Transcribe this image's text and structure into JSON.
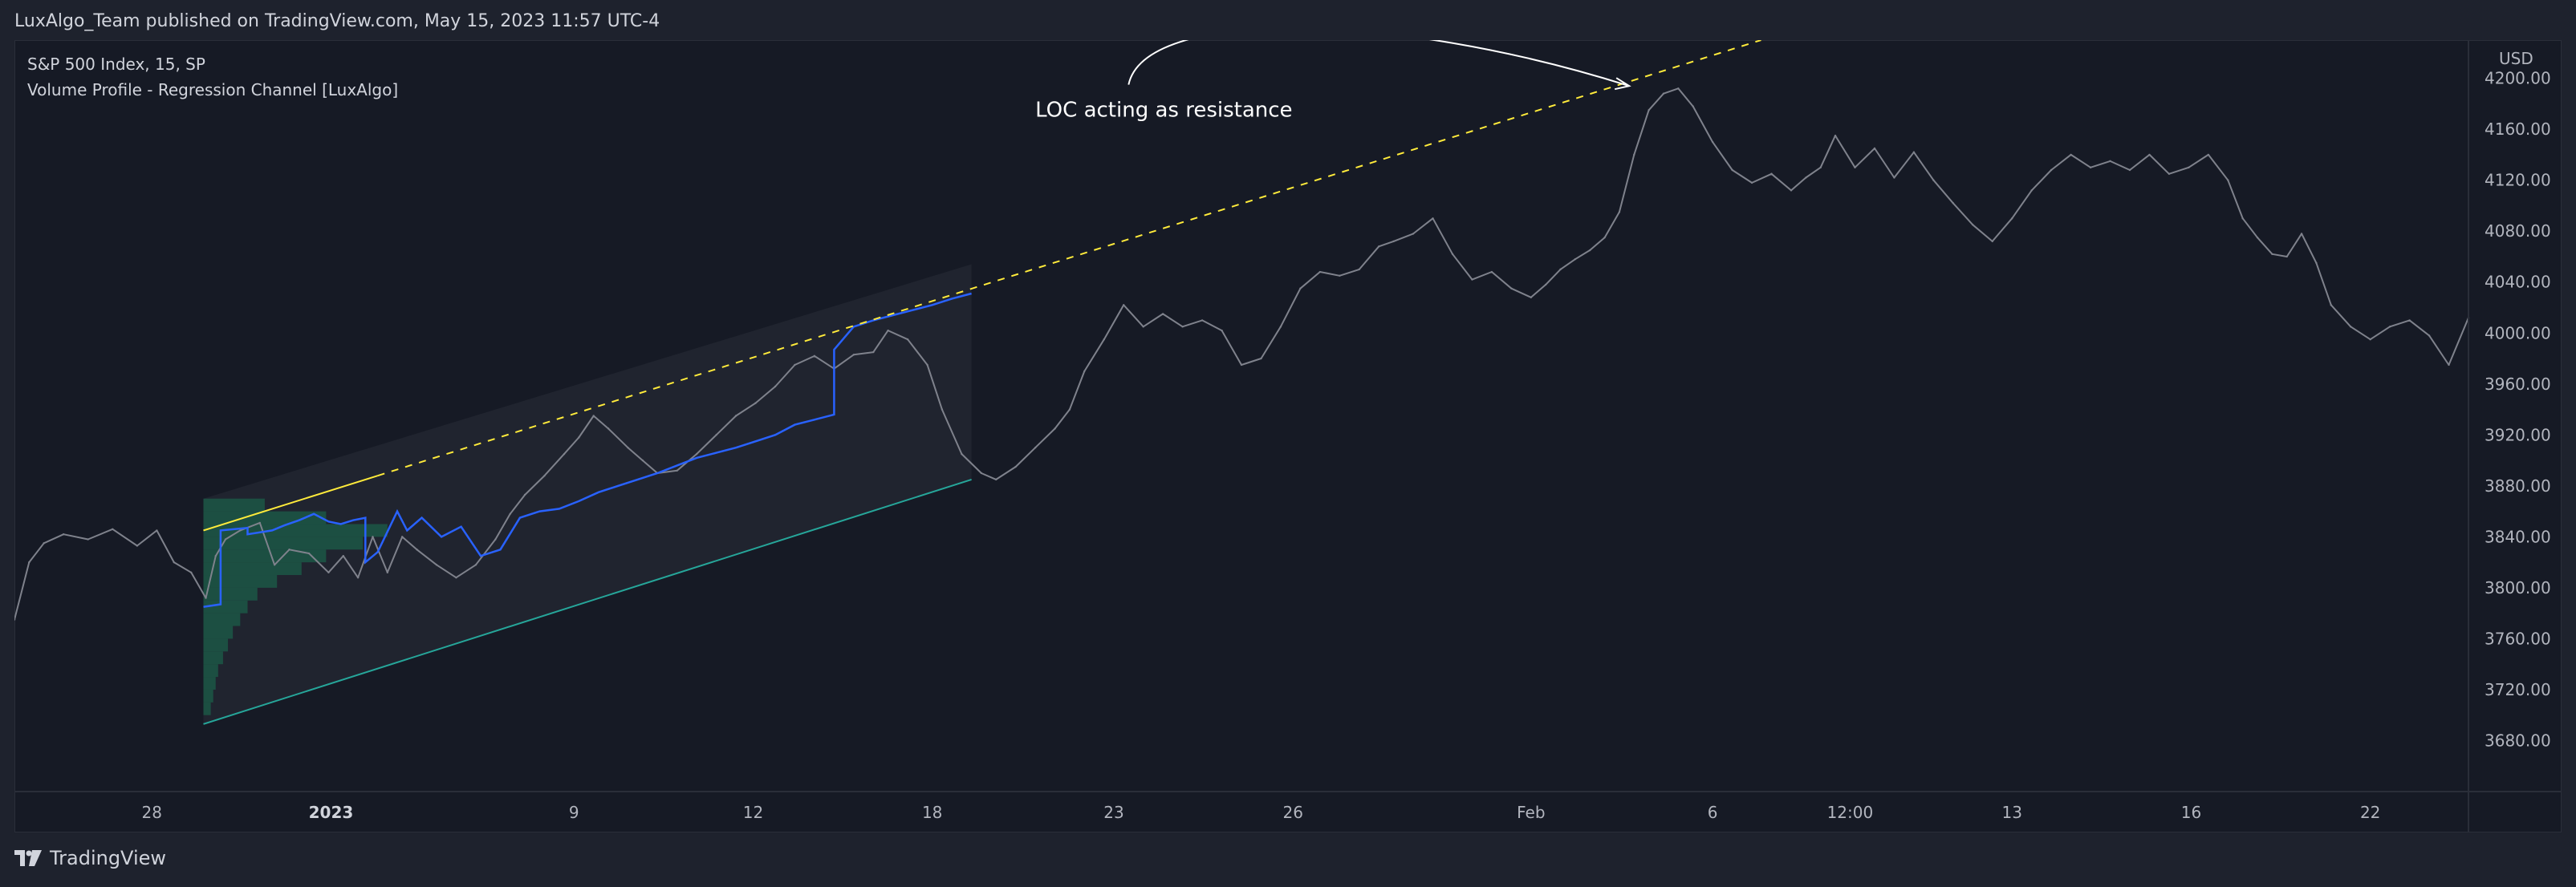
{
  "header": {
    "published_line": "LuxAlgo_Team published on TradingView.com, May 15, 2023 11:57 UTC-4"
  },
  "legend": {
    "symbol_line": "S&P 500 Index, 15, SP",
    "indicator_line": "Volume Profile - Regression Channel [LuxAlgo]"
  },
  "footer": {
    "brand": "TradingView"
  },
  "colors": {
    "background": "#161a25",
    "price_line": "#7f828c",
    "poc_line": "#2962ff",
    "resistance_line": "#ffeb3b",
    "lower_channel": "#26a69a",
    "channel_fill": "#2a2e39",
    "profile_fill": "#1b5e4a"
  },
  "chart_data": {
    "type": "line",
    "title": "",
    "xlabel": "",
    "ylabel": "",
    "y_unit_label": "USD",
    "ylim": [
      3640,
      4230
    ],
    "x_range": [
      0,
      100
    ],
    "x_ticks": [
      {
        "x": 5.6,
        "label": "28",
        "bold": false
      },
      {
        "x": 12.9,
        "label": "2023",
        "bold": true
      },
      {
        "x": 22.8,
        "label": "9",
        "bold": false
      },
      {
        "x": 30.1,
        "label": "12",
        "bold": false
      },
      {
        "x": 37.4,
        "label": "18",
        "bold": false
      },
      {
        "x": 44.8,
        "label": "23",
        "bold": false
      },
      {
        "x": 52.1,
        "label": "26",
        "bold": false
      },
      {
        "x": 61.8,
        "label": "Feb",
        "bold": false
      },
      {
        "x": 69.2,
        "label": "6",
        "bold": false
      },
      {
        "x": 74.8,
        "label": "12:00",
        "bold": false
      },
      {
        "x": 81.4,
        "label": "13",
        "bold": false
      },
      {
        "x": 88.7,
        "label": "16",
        "bold": false
      },
      {
        "x": 96.0,
        "label": "22",
        "bold": false
      }
    ],
    "y_ticks": [
      "4200.00",
      "4160.00",
      "4120.00",
      "4080.00",
      "4040.00",
      "4000.00",
      "3960.00",
      "3920.00",
      "3880.00",
      "3840.00",
      "3800.00",
      "3760.00",
      "3720.00",
      "3680.00"
    ],
    "series": [
      {
        "kind": "price",
        "x": [
          0,
          0.6,
          1.2,
          2.0,
          3.0,
          4.0,
          5.0,
          5.8,
          6.5,
          7.2,
          7.8,
          8.2,
          8.6,
          9.2,
          10.0,
          10.6,
          11.2,
          12.0,
          12.8,
          13.4,
          14.0,
          14.6,
          15.2,
          15.8,
          16.4,
          17.2,
          18.0,
          18.8,
          19.6,
          20.2,
          20.8,
          21.6,
          22.4,
          23.0,
          23.6,
          24.2,
          25.0,
          25.6,
          26.2,
          27.0,
          27.8,
          28.6,
          29.4,
          30.2,
          31.0,
          31.8,
          32.6,
          33.4,
          34.2,
          35.0,
          35.6,
          36.4,
          37.2,
          37.8,
          38.6,
          39.4,
          40.0,
          40.8,
          41.6,
          42.4,
          43.0,
          43.6,
          44.4,
          45.2,
          46.0,
          46.8,
          47.6,
          48.4,
          49.2,
          50.0,
          50.8,
          51.6,
          52.4,
          53.2,
          54.0,
          54.8,
          55.6,
          56.2,
          57.0,
          57.8,
          58.6,
          59.4,
          60.2,
          61.0,
          61.8,
          62.4,
          63.0,
          63.6,
          64.2,
          64.8,
          65.4,
          66.0,
          66.6,
          67.2,
          67.8,
          68.4,
          69.2,
          70.0,
          70.8,
          71.6,
          72.4,
          73.0,
          73.6,
          74.2,
          75.0,
          75.8,
          76.6,
          77.4,
          78.2,
          79.0,
          79.8,
          80.6,
          81.4,
          82.2,
          83.0,
          83.8,
          84.6,
          85.4,
          86.2,
          87.0,
          87.8,
          88.6,
          89.4,
          90.2,
          90.8,
          91.4,
          92.0,
          92.6,
          93.2,
          93.8,
          94.4,
          95.2,
          96.0,
          96.8,
          97.6,
          98.4,
          99.2,
          100.0
        ],
        "y": [
          3775,
          3820,
          3835,
          3842,
          3838,
          3846,
          3833,
          3845,
          3820,
          3812,
          3792,
          3825,
          3838,
          3845,
          3851,
          3818,
          3830,
          3827,
          3812,
          3825,
          3808,
          3840,
          3812,
          3840,
          3830,
          3818,
          3808,
          3818,
          3838,
          3858,
          3873,
          3888,
          3905,
          3918,
          3935,
          3925,
          3910,
          3900,
          3890,
          3892,
          3905,
          3920,
          3935,
          3945,
          3958,
          3975,
          3982,
          3972,
          3983,
          3985,
          4002,
          3995,
          3975,
          3940,
          3905,
          3890,
          3885,
          3895,
          3910,
          3925,
          3940,
          3970,
          3995,
          4022,
          4005,
          4015,
          4005,
          4010,
          4002,
          3975,
          3980,
          4005,
          4035,
          4048,
          4045,
          4050,
          4068,
          4072,
          4078,
          4090,
          4062,
          4042,
          4048,
          4035,
          4028,
          4038,
          4050,
          4058,
          4065,
          4075,
          4095,
          4140,
          4175,
          4188,
          4192,
          4178,
          4150,
          4128,
          4118,
          4125,
          4112,
          4122,
          4130,
          4155,
          4130,
          4145,
          4122,
          4142,
          4120,
          4102,
          4085,
          4072,
          4090,
          4112,
          4128,
          4140,
          4130,
          4135,
          4128,
          4140,
          4125,
          4130,
          4140,
          4120,
          4090,
          4075,
          4062,
          4060,
          4078,
          4055,
          4022,
          4005,
          3995,
          4005,
          4010,
          3998,
          3975,
          4012
        ]
      },
      {
        "kind": "poc",
        "x": [
          7.7,
          8.4,
          8.4,
          9.5,
          9.5,
          10.5,
          11.0,
          11.6,
          12.2,
          12.8,
          13.3,
          13.8,
          14.3,
          14.3,
          14.8,
          15.6,
          16.0,
          16.6,
          17.4,
          18.2,
          19.0,
          19.8,
          20.6,
          21.4,
          22.2,
          23.0,
          23.8,
          24.6,
          25.4,
          26.2,
          27.0,
          27.8,
          28.6,
          29.4,
          30.2,
          31.0,
          31.8,
          32.6,
          33.4,
          33.4,
          34.2,
          35.0,
          35.8,
          36.6,
          37.4,
          38.2,
          39.0
        ],
        "y": [
          3785,
          3787,
          3845,
          3847,
          3842,
          3845,
          3849,
          3853,
          3858,
          3852,
          3850,
          3853,
          3855,
          3820,
          3828,
          3860,
          3845,
          3855,
          3840,
          3848,
          3825,
          3830,
          3855,
          3860,
          3862,
          3868,
          3875,
          3880,
          3885,
          3890,
          3896,
          3902,
          3906,
          3910,
          3915,
          3920,
          3928,
          3932,
          3936,
          3987,
          4005,
          4010,
          4014,
          4018,
          4022,
          4027,
          4031
        ]
      },
      {
        "kind": "loc_resistance",
        "x_start": 7.7,
        "y_start": 3845,
        "x_solid_end": 14.8,
        "y_solid_end": 3888,
        "x_end": 74.8,
        "y_end": 4252
      },
      {
        "kind": "lower_channel",
        "x_start": 7.7,
        "y_start": 3693,
        "x_end": 39.0,
        "y_end": 3885
      }
    ],
    "channel": {
      "x_start": 7.7,
      "x_end": 39.0,
      "upper_start": 3870,
      "upper_end": 4054,
      "lower_start": 3693,
      "lower_end": 3885
    },
    "volume_profile": {
      "x_base": 7.7,
      "levels": [
        3860,
        3850,
        3840,
        3830,
        3820,
        3810,
        3800,
        3790,
        3780,
        3770,
        3760,
        3750,
        3740,
        3730,
        3720,
        3710,
        3700
      ],
      "widths": [
        2.5,
        5.0,
        7.5,
        6.5,
        5.0,
        4.0,
        3.0,
        2.2,
        1.8,
        1.5,
        1.2,
        1.0,
        0.8,
        0.6,
        0.5,
        0.4,
        0.3
      ]
    },
    "annotations": [
      {
        "text": "LOC acting as resistance",
        "x": 41.6,
        "y": 4170,
        "arrow_from_x": 45.4,
        "arrow_from_y": 4195,
        "arrow_to_x": 65.8,
        "arrow_to_y": 4194
      }
    ],
    "grid": false,
    "legend_position": "top-left"
  }
}
